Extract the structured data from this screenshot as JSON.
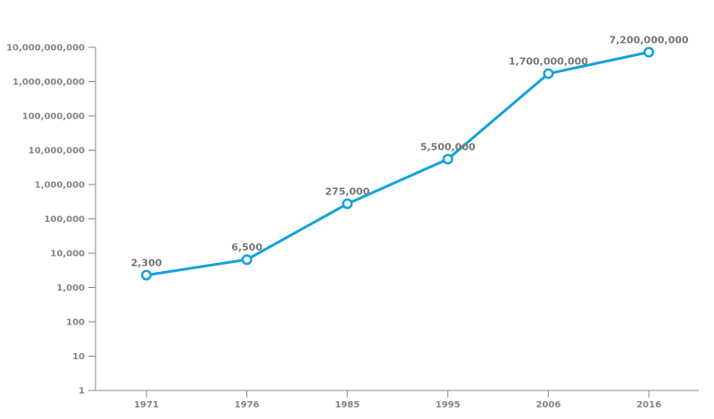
{
  "page": {
    "background": "#ffffff"
  },
  "chart_data": {
    "type": "line",
    "title": "",
    "xlabel": "",
    "ylabel": "",
    "categories": [
      "1971",
      "1976",
      "1985",
      "1995",
      "2006",
      "2016"
    ],
    "series": [
      {
        "name": "value",
        "values": [
          2300,
          6500,
          275000,
          5500000,
          1700000000,
          7200000000
        ],
        "labels": [
          "2,300",
          "6,500",
          "275,000",
          "5,500,000",
          "1,700,000,000",
          "7,200,000,000"
        ],
        "color": "#16A0DB",
        "marker": "open-circle",
        "marker_fill": "#ffffff"
      }
    ],
    "y_axis": {
      "scale": "log",
      "min": 1,
      "max": 10000000000,
      "tick_values": [
        1,
        10,
        100,
        1000,
        10000,
        100000,
        1000000,
        10000000,
        100000000,
        1000000000,
        10000000000
      ],
      "tick_labels": [
        "1",
        "10",
        "100",
        "1,000",
        "10,000",
        "100,000",
        "1,000,000",
        "10,000,000",
        "100,000,000",
        "1,000,000,000",
        "10,000,000,000"
      ]
    },
    "x_axis": {
      "tick_labels": [
        "1971",
        "1976",
        "1985",
        "1995",
        "2006",
        "2016"
      ]
    },
    "grid": false,
    "legend": false,
    "colors": {
      "axis_line": "#888888",
      "tick_label": "#848484",
      "data_label": "#757575"
    }
  }
}
